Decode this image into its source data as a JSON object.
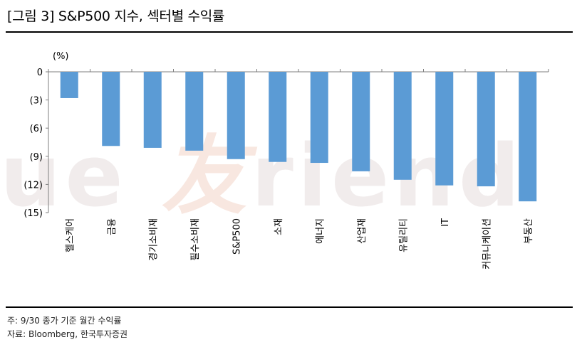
{
  "figure": {
    "title": "[그림 3] S&P500 지수, 섹터별 수익률",
    "notes": [
      "주: 9/30 종가 기준 월간 수익률",
      "자료: Bloomberg, 한국투자증권"
    ],
    "watermark": {
      "left": "ue ",
      "accent": "友",
      "right": "riend"
    }
  },
  "chart_data": {
    "type": "bar",
    "unit_label": "(%)",
    "categories": [
      "헬스케어",
      "금융",
      "경기소비재",
      "필수소비재",
      "S&P500",
      "소재",
      "에너지",
      "산업재",
      "유틸리티",
      "IT",
      "커뮤니케이션",
      "부동산"
    ],
    "values": [
      -2.8,
      -7.9,
      -8.1,
      -8.4,
      -9.3,
      -9.6,
      -9.7,
      -10.6,
      -11.5,
      -12.1,
      -12.2,
      -13.8
    ],
    "ylim": [
      -15,
      0
    ],
    "yticks": [
      0,
      -3,
      -6,
      -9,
      -12,
      -15
    ],
    "ytick_labels": [
      "0",
      "(3)",
      "(6)",
      "(9)",
      "(12)",
      "(15)"
    ],
    "bar_color": "#5b9bd5",
    "grid": false,
    "legend": "none"
  }
}
